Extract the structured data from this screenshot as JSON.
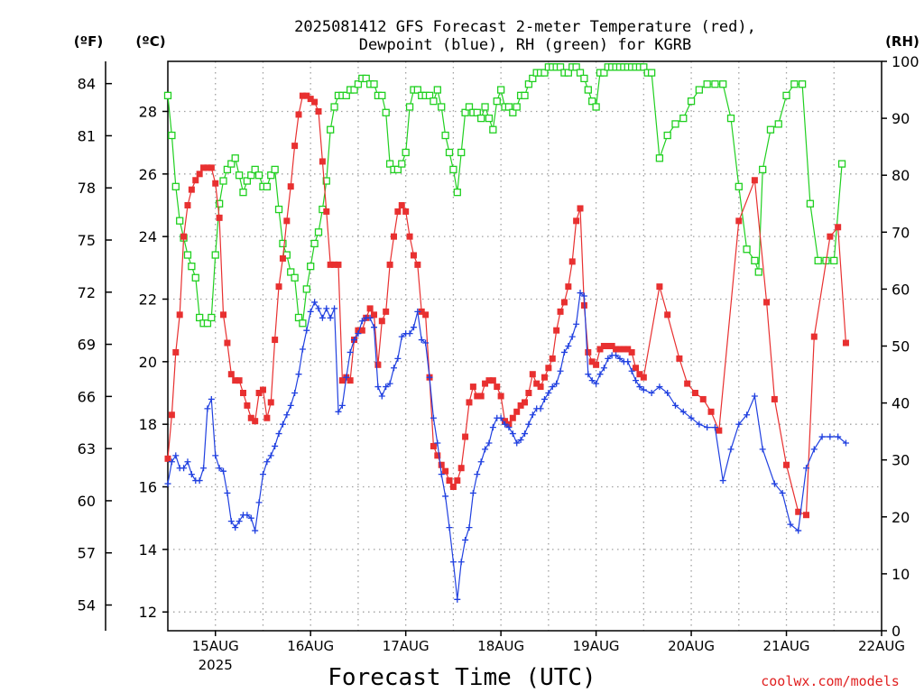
{
  "chart_data": {
    "type": "line",
    "title_line1": "2025081412 GFS Forecast 2-meter Temperature (red),",
    "title_line2": "Dewpoint (blue), RH (green) for KGRB",
    "unit_f": "(ºF)",
    "unit_c": "(ºC)",
    "unit_rh": "(RH)",
    "xlabel": "Forecast Time (UTC)",
    "credit": "coolwx.com/models",
    "x_start_hours": 0,
    "x_end_hours": 180,
    "x_ticks": [
      {
        "label": "15AUG",
        "sub": "2025",
        "hour": 12
      },
      {
        "label": "16AUG",
        "sub": "",
        "hour": 36
      },
      {
        "label": "17AUG",
        "sub": "",
        "hour": 60
      },
      {
        "label": "18AUG",
        "sub": "",
        "hour": 84
      },
      {
        "label": "19AUG",
        "sub": "",
        "hour": 108
      },
      {
        "label": "20AUG",
        "sub": "",
        "hour": 132
      },
      {
        "label": "21AUG",
        "sub": "",
        "hour": 156
      },
      {
        "label": "22AUG",
        "sub": "",
        "hour": 180
      }
    ],
    "ylim_c": [
      11.4,
      29.6
    ],
    "ylim_rh": [
      0,
      100
    ],
    "c_ticks": [
      12,
      14,
      16,
      18,
      20,
      22,
      24,
      26,
      28
    ],
    "f_ticks": [
      54,
      57,
      60,
      63,
      66,
      69,
      72,
      75,
      78,
      81,
      84
    ],
    "rh_ticks": [
      0,
      10,
      20,
      30,
      40,
      50,
      60,
      70,
      80,
      90,
      100
    ],
    "grid": true,
    "colors": {
      "temperature": "#e83030",
      "dewpoint": "#2040e0",
      "rh": "#20d020",
      "grid": "#a0a0a0"
    },
    "series": [
      {
        "key": "temperature",
        "marker": "filled-square",
        "hourly_to_120": true,
        "values": [
          16.9,
          18.3,
          20.3,
          21.5,
          24.0,
          25.0,
          25.5,
          25.8,
          26.0,
          26.2,
          26.2,
          26.2,
          25.7,
          24.6,
          21.5,
          20.6,
          19.6,
          19.4,
          19.4,
          19.0,
          18.6,
          18.2,
          18.1,
          19.0,
          19.1,
          18.2,
          18.7,
          20.7,
          22.4,
          23.3,
          24.5,
          25.6,
          26.9,
          27.9,
          28.5,
          28.5,
          28.4,
          28.3,
          28.0,
          26.4,
          24.8,
          23.1,
          23.1,
          23.1,
          19.4,
          19.5,
          19.4,
          20.7,
          21.0,
          21.0,
          21.4,
          21.7,
          21.5,
          19.9,
          21.3,
          21.6,
          23.1,
          24.0,
          24.8,
          25.0,
          24.8,
          24.0,
          23.4,
          23.1,
          21.6,
          21.5,
          19.5,
          17.3,
          17.0,
          16.7,
          16.5,
          16.2,
          16.0,
          16.2,
          16.6,
          17.6,
          18.7,
          19.2,
          18.9,
          18.9,
          19.3,
          19.4,
          19.4,
          19.2,
          18.9,
          18.1,
          18.0,
          18.2,
          18.4,
          18.6,
          18.7,
          19.0,
          19.6,
          19.3,
          19.2,
          19.5,
          19.8,
          20.1,
          21.0,
          21.6,
          21.9,
          22.4,
          23.2,
          24.5,
          24.9,
          21.8,
          20.3,
          20.0,
          19.9,
          20.4,
          20.5,
          20.5,
          20.5,
          20.4,
          20.4,
          20.4,
          20.4,
          20.3,
          19.8,
          19.6,
          19.5
        ],
        "tail": [
          [
            120,
            19.5
          ],
          [
            124,
            22.4
          ],
          [
            126,
            21.5
          ],
          [
            129,
            20.1
          ],
          [
            131,
            19.3
          ],
          [
            133,
            19.0
          ],
          [
            135,
            18.8
          ],
          [
            137,
            18.4
          ],
          [
            139,
            17.8
          ],
          [
            144,
            24.5
          ],
          [
            148,
            25.8
          ],
          [
            151,
            21.9
          ],
          [
            153,
            18.8
          ],
          [
            156,
            16.7
          ],
          [
            159,
            15.2
          ],
          [
            161,
            15.1
          ],
          [
            163,
            20.8
          ],
          [
            167,
            24.0
          ],
          [
            169,
            24.3
          ],
          [
            171,
            20.6
          ]
        ]
      },
      {
        "key": "dewpoint",
        "marker": "plus",
        "hourly_to_120": true,
        "values": [
          16.1,
          16.8,
          17.0,
          16.6,
          16.6,
          16.8,
          16.4,
          16.2,
          16.2,
          16.6,
          18.5,
          18.8,
          17.0,
          16.6,
          16.5,
          15.8,
          14.9,
          14.7,
          14.9,
          15.1,
          15.1,
          15.0,
          14.6,
          15.5,
          16.4,
          16.8,
          17.0,
          17.3,
          17.7,
          18.0,
          18.3,
          18.6,
          19.0,
          19.6,
          20.4,
          21.0,
          21.6,
          21.9,
          21.7,
          21.4,
          21.7,
          21.4,
          21.7,
          18.4,
          18.6,
          19.5,
          20.3,
          20.7,
          20.9,
          21.3,
          21.4,
          21.4,
          21.1,
          19.2,
          18.9,
          19.2,
          19.3,
          19.8,
          20.1,
          20.8,
          20.9,
          20.9,
          21.1,
          21.6,
          20.7,
          20.6,
          19.5,
          18.2,
          17.4,
          16.4,
          15.7,
          14.7,
          13.6,
          12.4,
          13.6,
          14.3,
          14.7,
          15.8,
          16.4,
          16.8,
          17.2,
          17.4,
          17.9,
          18.2,
          18.2,
          18.0,
          17.9,
          17.7,
          17.4,
          17.5,
          17.7,
          18.0,
          18.3,
          18.5,
          18.5,
          18.8,
          19.0,
          19.2,
          19.3,
          19.7,
          20.3,
          20.5,
          20.8,
          21.2,
          22.2,
          22.1,
          19.6,
          19.4,
          19.3,
          19.6,
          19.8,
          20.1,
          20.2,
          20.2,
          20.1,
          20.0,
          20.0,
          19.7,
          19.4,
          19.2,
          19.1
        ],
        "tail": [
          [
            120,
            19.1
          ],
          [
            122,
            19.0
          ],
          [
            124,
            19.2
          ],
          [
            126,
            19.0
          ],
          [
            128,
            18.6
          ],
          [
            130,
            18.4
          ],
          [
            132,
            18.2
          ],
          [
            134,
            18.0
          ],
          [
            136,
            17.9
          ],
          [
            138,
            17.9
          ],
          [
            140,
            16.2
          ],
          [
            142,
            17.2
          ],
          [
            144,
            18.0
          ],
          [
            146,
            18.3
          ],
          [
            148,
            18.9
          ],
          [
            150,
            17.2
          ],
          [
            153,
            16.1
          ],
          [
            155,
            15.8
          ],
          [
            157,
            14.8
          ],
          [
            159,
            14.6
          ],
          [
            161,
            16.6
          ],
          [
            163,
            17.2
          ],
          [
            165,
            17.6
          ],
          [
            167,
            17.6
          ],
          [
            169,
            17.6
          ],
          [
            171,
            17.4
          ]
        ]
      },
      {
        "key": "rh",
        "marker": "open-square",
        "hourly_to_120": true,
        "values": [
          94,
          87,
          78,
          72,
          69,
          66,
          64,
          62,
          55,
          54,
          54,
          55,
          66,
          75,
          79,
          81,
          82,
          83,
          80,
          77,
          79,
          80,
          81,
          80,
          78,
          78,
          80,
          81,
          74,
          68,
          66,
          63,
          62,
          55,
          54,
          60,
          64,
          68,
          70,
          74,
          79,
          88,
          92,
          94,
          94,
          94,
          95,
          95,
          96,
          97,
          97,
          96,
          96,
          94,
          94,
          91,
          82,
          81,
          81,
          82,
          84,
          92,
          95,
          95,
          94,
          94,
          94,
          93,
          95,
          92,
          87,
          84,
          81,
          77,
          84,
          91,
          92,
          91,
          91,
          90,
          92,
          90,
          88,
          93,
          95,
          92,
          92,
          91,
          92,
          94,
          94,
          96,
          97,
          98,
          98,
          98,
          99,
          99,
          99,
          99,
          98,
          98,
          99,
          99,
          98,
          97,
          95,
          93,
          92,
          98,
          98,
          99,
          99,
          99,
          99,
          99,
          99,
          99,
          99,
          99,
          99,
          98
        ],
        "tail": [
          [
            120,
            98
          ],
          [
            122,
            98
          ],
          [
            124,
            83
          ],
          [
            126,
            87
          ],
          [
            128,
            89
          ],
          [
            130,
            90
          ],
          [
            132,
            93
          ],
          [
            134,
            95
          ],
          [
            136,
            96
          ],
          [
            138,
            96
          ],
          [
            140,
            96
          ],
          [
            142,
            90
          ],
          [
            144,
            78
          ],
          [
            146,
            67
          ],
          [
            148,
            65
          ],
          [
            149,
            63
          ],
          [
            150,
            81
          ],
          [
            152,
            88
          ],
          [
            154,
            89
          ],
          [
            156,
            94
          ],
          [
            158,
            96
          ],
          [
            160,
            96
          ],
          [
            162,
            75
          ],
          [
            164,
            65
          ],
          [
            166,
            65
          ],
          [
            168,
            65
          ],
          [
            170,
            82
          ]
        ]
      }
    ]
  }
}
